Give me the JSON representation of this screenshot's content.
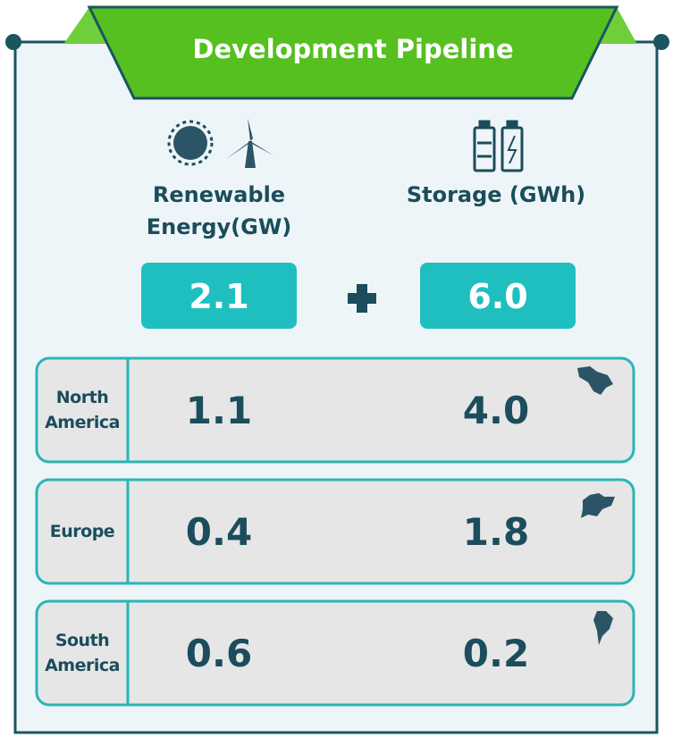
{
  "header": {
    "title": "Development Pipeline"
  },
  "columns": [
    {
      "label": "Renewable Energy(GW)",
      "total": "2.1"
    },
    {
      "label": "Storage (GWh)",
      "total": "6.0"
    }
  ],
  "regions": [
    {
      "name": "North America",
      "values": [
        "1.1",
        "4.0"
      ]
    },
    {
      "name": "Europe",
      "values": [
        "0.4",
        "1.8"
      ]
    },
    {
      "name": "South America",
      "values": [
        "0.6",
        "0.2"
      ]
    }
  ]
}
